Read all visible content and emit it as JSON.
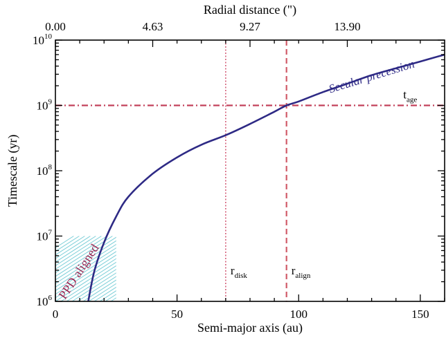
{
  "chart_data": {
    "type": "line",
    "title": "",
    "xlabel": "Semi-major axis (au)",
    "ylabel": "Timescale (yr)",
    "top_xlabel": "Radial distance (\")",
    "xlim": [
      0,
      160
    ],
    "ylim": [
      1000000,
      10000000000
    ],
    "yscale": "log",
    "grid": false,
    "x_ticks": [
      {
        "value": 0,
        "label": "0"
      },
      {
        "value": 50,
        "label": "50"
      },
      {
        "value": 100,
        "label": "100"
      },
      {
        "value": 150,
        "label": "150"
      }
    ],
    "top_ticks": [
      {
        "value": 0,
        "label": "0.00"
      },
      {
        "value": 40,
        "label": "4.63"
      },
      {
        "value": 80,
        "label": "9.27"
      },
      {
        "value": 120,
        "label": "13.90"
      }
    ],
    "y_ticks": [
      {
        "value": 1000000,
        "base": "10",
        "exp": "6"
      },
      {
        "value": 10000000,
        "base": "10",
        "exp": "7"
      },
      {
        "value": 100000000,
        "base": "10",
        "exp": "8"
      },
      {
        "value": 1000000000,
        "base": "10",
        "exp": "9"
      },
      {
        "value": 10000000000,
        "base": "10",
        "exp": "10"
      }
    ],
    "series": [
      {
        "name": "Secular precession",
        "color": "#2e2a85",
        "x": [
          13.5,
          16,
          20,
          25,
          30,
          40,
          50,
          60,
          70,
          80,
          90,
          95,
          100,
          110,
          120,
          130,
          140,
          150,
          160
        ],
        "y": [
          1000000,
          2900000,
          8000000,
          20000000,
          40000000,
          90000000,
          160000000,
          250000000,
          350000000,
          520000000,
          800000000,
          1000000000,
          1150000000,
          1600000000,
          2150000000,
          2900000000,
          3700000000,
          4700000000,
          6000000000
        ]
      }
    ],
    "reference_lines": [
      {
        "orientation": "horizontal",
        "value": 1000000000,
        "style": "dash-dot",
        "color": "#c2405a",
        "label": "t",
        "label_sub": "age"
      },
      {
        "orientation": "vertical",
        "value": 70,
        "style": "dotted",
        "color": "#d4607a",
        "label": "r",
        "label_sub": "disk"
      },
      {
        "orientation": "vertical",
        "value": 95,
        "style": "dashed",
        "color": "#d05a68",
        "label": "r",
        "label_sub": "align"
      }
    ],
    "shaded_region": {
      "x": [
        0,
        25
      ],
      "y": [
        1000000,
        10000000
      ],
      "fill": "hatched",
      "color": "#7ccfd8",
      "label": "PPD aligned",
      "label_color": "#9a2a55"
    }
  }
}
